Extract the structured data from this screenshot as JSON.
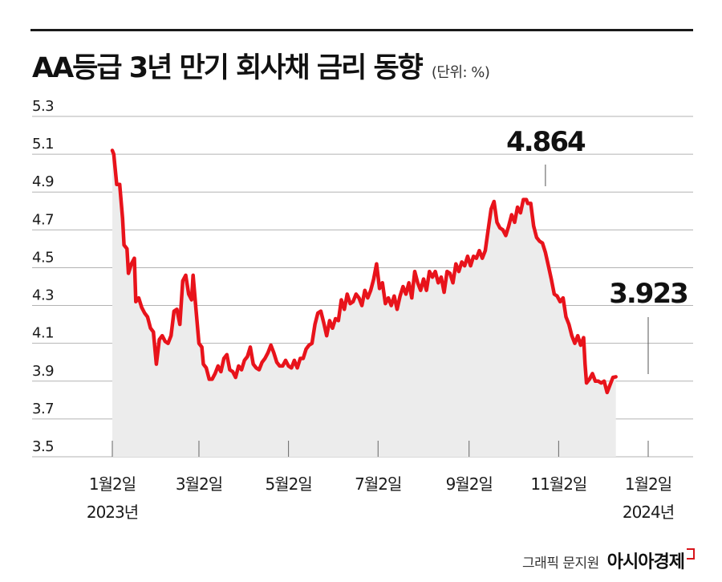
{
  "header": {
    "title": "AA등급 3년 만기 회사채 금리 동향",
    "unit": "(단위: %)"
  },
  "footer": {
    "credit": "그래픽 문지원",
    "brand": "아시아경제"
  },
  "colors": {
    "line": "#e8131b",
    "area": "#ececec",
    "grid": "#b3b3b3",
    "text": "#1a1a1a"
  },
  "chart_data": {
    "type": "area",
    "title": "AA등급 3년 만기 회사채 금리 동향",
    "ylabel": "(단위: %)",
    "ylim": [
      3.5,
      5.3
    ],
    "yticks": [
      "5.3",
      "5.1",
      "4.9",
      "4.7",
      "4.5",
      "4.3",
      "4.1",
      "3.9",
      "3.7",
      "3.5"
    ],
    "grid": true,
    "xlim": [
      0,
      365
    ],
    "x_ticks": [
      {
        "x": 0,
        "lines": [
          "1월2일",
          "2023년"
        ]
      },
      {
        "x": 59,
        "lines": [
          "3월2일"
        ]
      },
      {
        "x": 120,
        "lines": [
          "5월2일"
        ]
      },
      {
        "x": 181,
        "lines": [
          "7월2일"
        ]
      },
      {
        "x": 243,
        "lines": [
          "9월2일"
        ]
      },
      {
        "x": 304,
        "lines": [
          "11월2일"
        ]
      },
      {
        "x": 365,
        "lines": [
          "1월2일",
          "2024년"
        ]
      }
    ],
    "annotations": [
      {
        "x": 295,
        "y": 4.864,
        "label": "4.864"
      },
      {
        "x": 365,
        "y": 3.923,
        "label": "3.923"
      }
    ],
    "series": [
      {
        "values": [
          [
            0,
            5.12
          ],
          [
            1,
            5.1
          ],
          [
            3,
            4.94
          ],
          [
            5,
            4.94
          ],
          [
            7,
            4.76
          ],
          [
            8,
            4.62
          ],
          [
            10,
            4.6
          ],
          [
            11,
            4.47
          ],
          [
            13,
            4.52
          ],
          [
            15,
            4.55
          ],
          [
            16,
            4.32
          ],
          [
            18,
            4.34
          ],
          [
            20,
            4.29
          ],
          [
            22,
            4.26
          ],
          [
            24,
            4.24
          ],
          [
            26,
            4.18
          ],
          [
            28,
            4.16
          ],
          [
            30,
            3.99
          ],
          [
            32,
            4.12
          ],
          [
            34,
            4.14
          ],
          [
            36,
            4.11
          ],
          [
            38,
            4.1
          ],
          [
            40,
            4.14
          ],
          [
            42,
            4.27
          ],
          [
            44,
            4.28
          ],
          [
            46,
            4.2
          ],
          [
            48,
            4.43
          ],
          [
            50,
            4.46
          ],
          [
            52,
            4.36
          ],
          [
            54,
            4.33
          ],
          [
            55,
            4.46
          ],
          [
            57,
            4.28
          ],
          [
            59,
            4.1
          ],
          [
            61,
            4.08
          ],
          [
            62,
            3.99
          ],
          [
            64,
            3.97
          ],
          [
            66,
            3.91
          ],
          [
            68,
            3.91
          ],
          [
            70,
            3.94
          ],
          [
            72,
            3.98
          ],
          [
            74,
            3.95
          ],
          [
            76,
            4.02
          ],
          [
            78,
            4.04
          ],
          [
            80,
            3.96
          ],
          [
            82,
            3.95
          ],
          [
            84,
            3.92
          ],
          [
            86,
            3.98
          ],
          [
            88,
            3.96
          ],
          [
            90,
            4.01
          ],
          [
            92,
            4.03
          ],
          [
            94,
            4.08
          ],
          [
            96,
            3.99
          ],
          [
            98,
            3.97
          ],
          [
            100,
            3.96
          ],
          [
            102,
            4.0
          ],
          [
            104,
            4.02
          ],
          [
            106,
            4.05
          ],
          [
            108,
            4.09
          ],
          [
            110,
            4.05
          ],
          [
            112,
            4.0
          ],
          [
            114,
            3.98
          ],
          [
            116,
            3.98
          ],
          [
            118,
            4.01
          ],
          [
            120,
            3.98
          ],
          [
            122,
            3.97
          ],
          [
            124,
            4.01
          ],
          [
            126,
            3.97
          ],
          [
            128,
            4.02
          ],
          [
            130,
            4.02
          ],
          [
            132,
            4.07
          ],
          [
            134,
            4.09
          ],
          [
            136,
            4.1
          ],
          [
            138,
            4.2
          ],
          [
            140,
            4.26
          ],
          [
            142,
            4.27
          ],
          [
            144,
            4.21
          ],
          [
            146,
            4.14
          ],
          [
            148,
            4.22
          ],
          [
            150,
            4.18
          ],
          [
            152,
            4.23
          ],
          [
            154,
            4.22
          ],
          [
            156,
            4.33
          ],
          [
            158,
            4.28
          ],
          [
            160,
            4.36
          ],
          [
            162,
            4.31
          ],
          [
            164,
            4.32
          ],
          [
            166,
            4.36
          ],
          [
            168,
            4.34
          ],
          [
            170,
            4.3
          ],
          [
            172,
            4.38
          ],
          [
            174,
            4.34
          ],
          [
            176,
            4.38
          ],
          [
            178,
            4.44
          ],
          [
            180,
            4.52
          ],
          [
            182,
            4.39
          ],
          [
            184,
            4.42
          ],
          [
            186,
            4.31
          ],
          [
            188,
            4.34
          ],
          [
            190,
            4.3
          ],
          [
            192,
            4.35
          ],
          [
            194,
            4.28
          ],
          [
            196,
            4.35
          ],
          [
            198,
            4.4
          ],
          [
            200,
            4.36
          ],
          [
            202,
            4.42
          ],
          [
            204,
            4.34
          ],
          [
            206,
            4.48
          ],
          [
            208,
            4.42
          ],
          [
            210,
            4.38
          ],
          [
            212,
            4.44
          ],
          [
            214,
            4.38
          ],
          [
            216,
            4.48
          ],
          [
            218,
            4.45
          ],
          [
            220,
            4.48
          ],
          [
            222,
            4.42
          ],
          [
            224,
            4.45
          ],
          [
            226,
            4.37
          ],
          [
            228,
            4.48
          ],
          [
            230,
            4.47
          ],
          [
            232,
            4.42
          ],
          [
            234,
            4.52
          ],
          [
            236,
            4.48
          ],
          [
            238,
            4.53
          ],
          [
            240,
            4.51
          ],
          [
            242,
            4.56
          ],
          [
            244,
            4.51
          ],
          [
            246,
            4.56
          ],
          [
            248,
            4.55
          ],
          [
            250,
            4.59
          ],
          [
            252,
            4.55
          ],
          [
            254,
            4.59
          ],
          [
            256,
            4.7
          ],
          [
            258,
            4.81
          ],
          [
            260,
            4.85
          ],
          [
            262,
            4.74
          ],
          [
            264,
            4.71
          ],
          [
            266,
            4.7
          ],
          [
            268,
            4.67
          ],
          [
            270,
            4.72
          ],
          [
            272,
            4.78
          ],
          [
            274,
            4.74
          ],
          [
            276,
            4.82
          ],
          [
            278,
            4.79
          ],
          [
            280,
            4.86
          ],
          [
            282,
            4.86
          ],
          [
            283,
            4.84
          ],
          [
            285,
            4.84
          ],
          [
            287,
            4.72
          ],
          [
            289,
            4.66
          ],
          [
            291,
            4.64
          ],
          [
            293,
            4.63
          ],
          [
            295,
            4.58
          ],
          [
            297,
            4.51
          ],
          [
            299,
            4.44
          ],
          [
            301,
            4.36
          ],
          [
            303,
            4.35
          ],
          [
            305,
            4.32
          ],
          [
            307,
            4.34
          ],
          [
            309,
            4.24
          ],
          [
            311,
            4.2
          ],
          [
            313,
            4.14
          ],
          [
            315,
            4.1
          ],
          [
            317,
            4.14
          ],
          [
            319,
            4.09
          ],
          [
            321,
            4.13
          ],
          [
            322,
            3.99
          ],
          [
            323,
            3.89
          ],
          [
            325,
            3.91
          ],
          [
            327,
            3.94
          ],
          [
            329,
            3.9
          ],
          [
            331,
            3.9
          ],
          [
            333,
            3.89
          ],
          [
            335,
            3.9
          ],
          [
            337,
            3.84
          ],
          [
            339,
            3.88
          ],
          [
            341,
            3.92
          ],
          [
            343,
            3.923
          ]
        ]
      }
    ]
  }
}
